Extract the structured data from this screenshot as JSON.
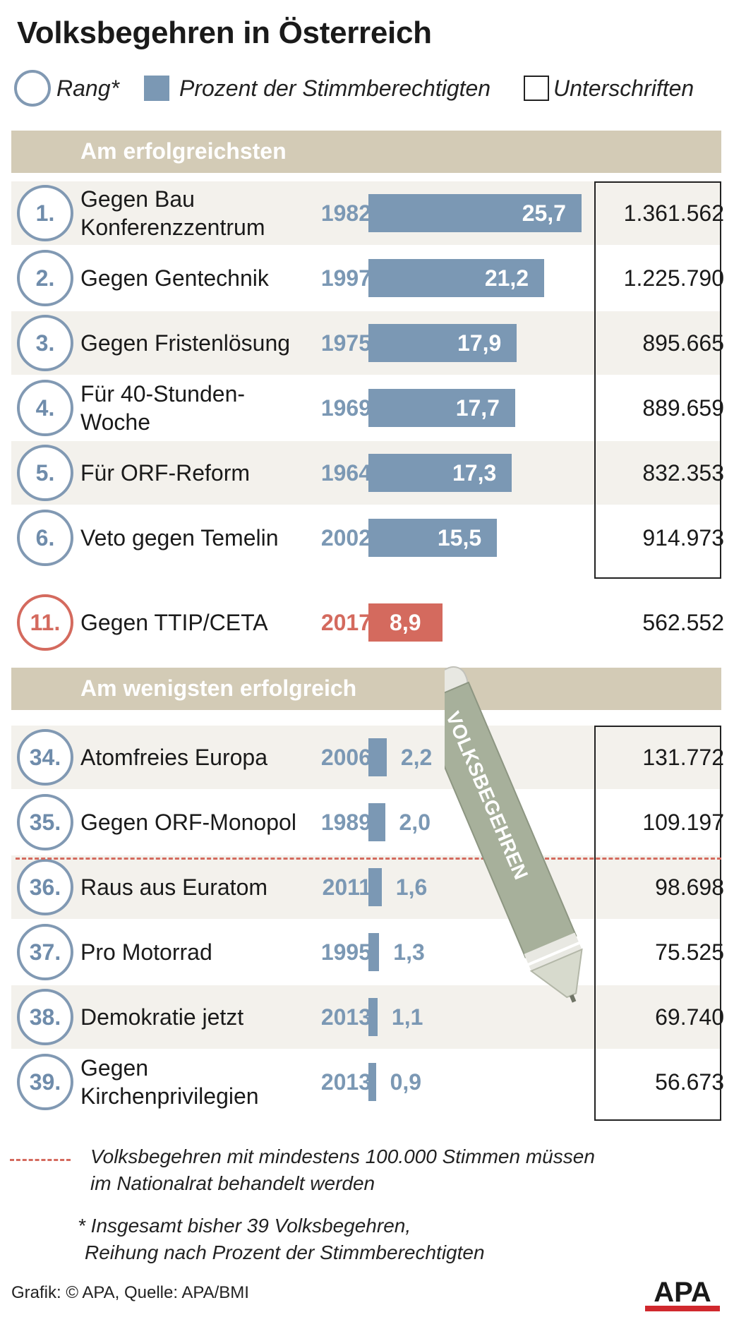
{
  "title": "Volksbegehren in Österreich",
  "legend": {
    "rank": "Rang*",
    "percent": "Prozent der Stimmberechtigten",
    "signatures": "Unterschriften"
  },
  "sections": {
    "top": "Am erfolgreichsten",
    "bottom": "Am wenigsten erfolgreich"
  },
  "chart_data": {
    "type": "bar",
    "title": "Volksbegehren in Österreich",
    "value_label": "Prozent der Stimmberechtigten",
    "top_rows": [
      {
        "rank": "1.",
        "name": "Gegen Bau Konferenzzentrum",
        "year": "1982",
        "percent": 25.7,
        "percent_label": "25,7",
        "signatures": "1.361.562"
      },
      {
        "rank": "2.",
        "name": "Gegen Gentechnik",
        "year": "1997",
        "percent": 21.2,
        "percent_label": "21,2",
        "signatures": "1.225.790"
      },
      {
        "rank": "3.",
        "name": "Gegen Fristenlösung",
        "year": "1975",
        "percent": 17.9,
        "percent_label": "17,9",
        "signatures": "895.665"
      },
      {
        "rank": "4.",
        "name": "Für 40-Stunden-Woche",
        "year": "1969",
        "percent": 17.7,
        "percent_label": "17,7",
        "signatures": "889.659"
      },
      {
        "rank": "5.",
        "name": "Für ORF-Reform",
        "year": "1964",
        "percent": 17.3,
        "percent_label": "17,3",
        "signatures": "832.353"
      },
      {
        "rank": "6.",
        "name": "Veto gegen Temelin",
        "year": "2002",
        "percent": 15.5,
        "percent_label": "15,5",
        "signatures": "914.973"
      }
    ],
    "highlight_row": {
      "rank": "11.",
      "name": "Gegen TTIP/CETA",
      "year": "2017",
      "percent": 8.9,
      "percent_label": "8,9",
      "signatures": "562.552"
    },
    "bottom_rows": [
      {
        "rank": "34.",
        "name": "Atomfreies Europa",
        "year": "2006",
        "percent": 2.2,
        "percent_label": "2,2",
        "signatures": "131.772"
      },
      {
        "rank": "35.",
        "name": "Gegen ORF-Monopol",
        "year": "1989",
        "percent": 2.0,
        "percent_label": "2,0",
        "signatures": "109.197"
      },
      {
        "rank": "36.",
        "name": "Raus aus Euratom",
        "year": "2011",
        "percent": 1.6,
        "percent_label": "1,6",
        "signatures": "98.698"
      },
      {
        "rank": "37.",
        "name": "Pro Motorrad",
        "year": "1995",
        "percent": 1.3,
        "percent_label": "1,3",
        "signatures": "75.525"
      },
      {
        "rank": "38.",
        "name": "Demokratie jetzt",
        "year": "2013",
        "percent": 1.1,
        "percent_label": "1,1",
        "signatures": "69.740"
      },
      {
        "rank": "39.",
        "name": "Gegen Kirchenprivilegien",
        "year": "2013",
        "percent": 0.9,
        "percent_label": "0,9",
        "signatures": "56.673"
      }
    ],
    "colors": {
      "bar": "#7b98b4",
      "highlight": "#d46a5e",
      "band": "#d3cbb6",
      "row_shade": "#f3f1ec"
    }
  },
  "pen_label": "VOLKSBEGEHREN",
  "notes": {
    "threshold_line1": "Volksbegehren mit mindestens 100.000 Stimmen müssen",
    "threshold_line2": "im Nationalrat behandelt werden",
    "total_line1": "* Insgesamt bisher 39 Volksbegehren,",
    "total_line2": "Reihung nach Prozent der Stimmberechtigten"
  },
  "footer": "Grafik: © APA, Quelle: APA/BMI",
  "logo": "APA"
}
